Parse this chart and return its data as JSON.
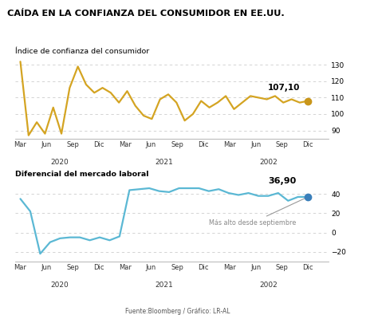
{
  "title": "CAÍDA EN LA CONFIANZA DEL CONSUMIDOR EN EE.UU.",
  "chart1_label": "Índice de confianza del consumidor",
  "chart2_label": "Diferencial del mercado laboral",
  "chart1_annotation": "107,10",
  "chart2_annotation": "36,90",
  "chart2_note": "Más alto desde septiembre",
  "footer": "Fuente:Bloomberg / Gráfico: LR-AL",
  "x_labels": [
    "Mar",
    "Jun",
    "Sep",
    "Dic",
    "Mar",
    "Jun",
    "Sep",
    "Dic",
    "Mar",
    "Jun",
    "Sep",
    "Dic"
  ],
  "x_year_labels": [
    [
      "2020",
      1.5
    ],
    [
      "2021",
      5.5
    ],
    [
      "2002",
      9.5
    ]
  ],
  "chart1_ylim": [
    85,
    135
  ],
  "chart1_yticks": [
    90,
    100,
    110,
    120,
    130
  ],
  "chart2_ylim": [
    -30,
    55
  ],
  "chart2_yticks": [
    -20,
    0,
    20,
    40
  ],
  "chart1_color": "#D4A422",
  "chart1_endpoint_color": "#C9961A",
  "chart2_color": "#5BB8D4",
  "chart2_endpoint_color": "#3A7FBA",
  "background_color": "#FFFFFF",
  "grid_color": "#CCCCCC",
  "chart1_data": [
    132,
    87,
    95,
    88,
    104,
    88,
    116,
    129,
    118,
    113,
    116,
    113,
    107,
    114,
    105,
    99,
    97,
    109,
    112,
    107,
    96,
    100,
    108,
    104,
    107,
    111,
    103,
    107,
    111,
    110,
    109,
    111,
    107,
    109,
    107,
    108
  ],
  "chart2_data": [
    35,
    22,
    -22,
    -10,
    -6,
    -5,
    -5,
    -8,
    -5,
    -8,
    -4,
    44,
    45,
    46,
    43,
    42,
    46,
    46,
    46,
    43,
    45,
    41,
    39,
    41,
    38,
    38,
    41,
    33,
    37,
    37
  ]
}
